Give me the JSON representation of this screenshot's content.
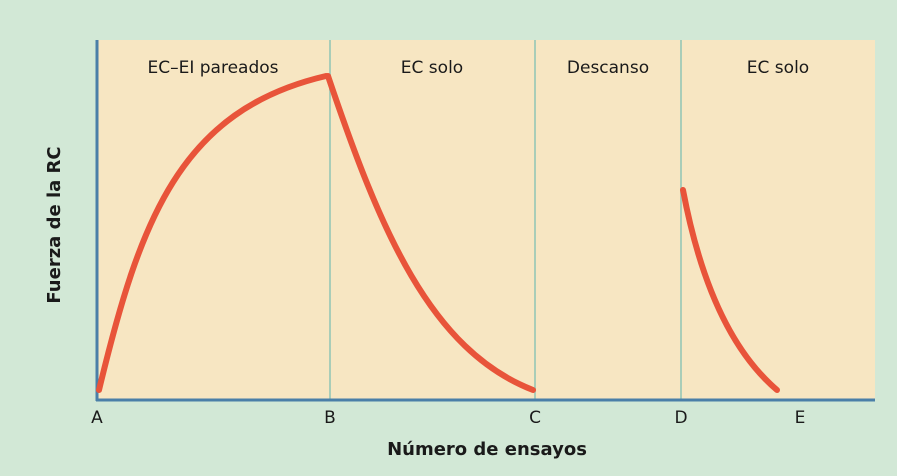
{
  "phases": [
    "EC–EI pareados",
    "EC solo",
    "Descanso",
    "EC solo"
  ],
  "points": [
    "A",
    "B",
    "C",
    "D",
    "E"
  ],
  "axes": {
    "x_label": "Número de ensayos",
    "y_label": "Fuerza de la RC"
  }
}
